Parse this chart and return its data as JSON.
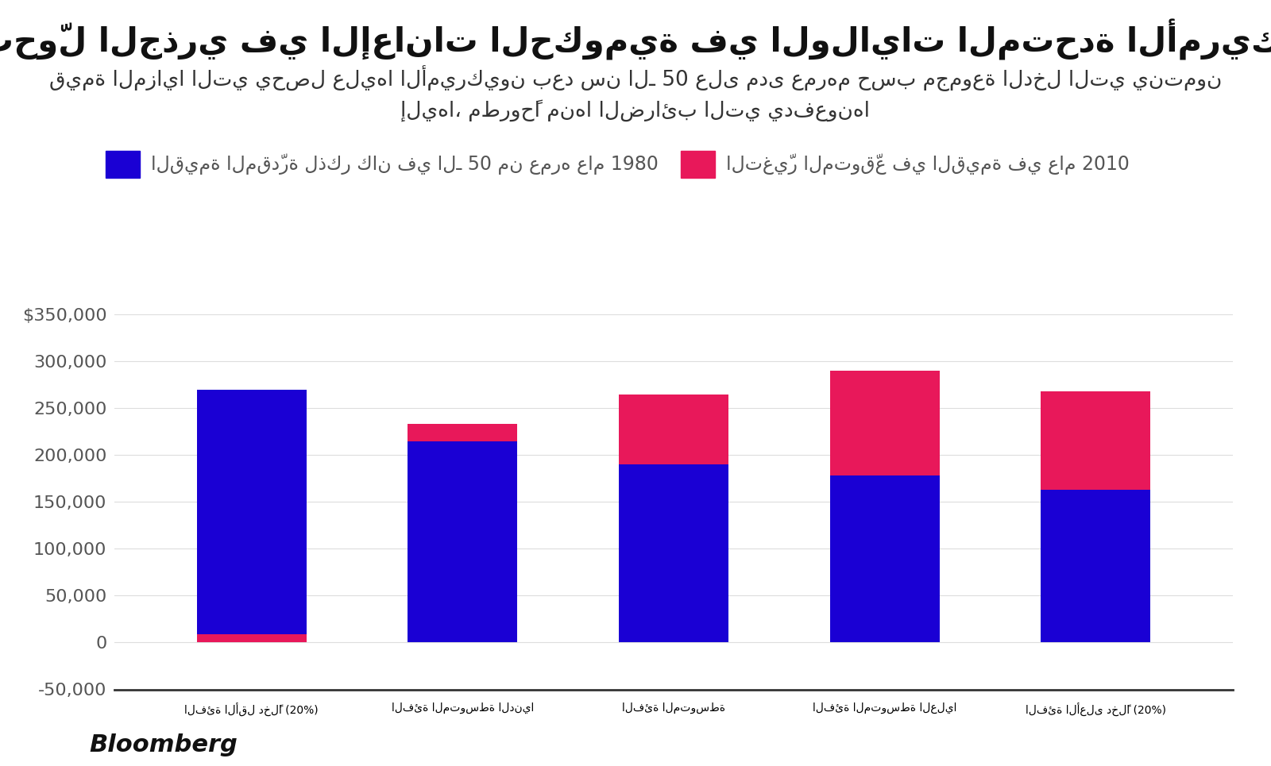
{
  "title": "التحوّل الجذري في الإعانات الحكومية في الولايات المتحدة الأمريكية",
  "subtitle_line1": "قيمة المزايا التي يحصل عليها الأميركيون بعد سن الـ 50 على مدى عمرهم حسب مجموعة الدخل التي ينتمون",
  "subtitle_line2": "إليها، مطروحًا منها الضرائب التي يدفعونها",
  "legend_blue_label": "القيمة المقدّرة لذكر كان في الـ 50 من عمره عام 1980",
  "legend_pink_label": "التغيّر المتوقّع في القيمة في عام 2010",
  "categories": [
    "الفئة الأقل دخلًا (20%)",
    "الفئة المتوسطة الدنيا",
    "الفئة المتوسطة",
    "الفئة المتوسطة العليا",
    "الفئة الأعلى دخلًا (20%)"
  ],
  "blue_values": [
    270000,
    215000,
    190000,
    178000,
    163000
  ],
  "pink_values": [
    9000,
    18000,
    75000,
    112000,
    105000
  ],
  "pink_bottom": [
    0,
    215000,
    190000,
    178000,
    163000
  ],
  "blue_color": "#1a00d4",
  "pink_color": "#e8185a",
  "bg_color": "#FFFFFF",
  "ylim_min": -50000,
  "ylim_max": 375000,
  "yticks": [
    -50000,
    0,
    50000,
    100000,
    150000,
    200000,
    250000,
    300000,
    350000
  ],
  "ytick_labels": [
    "-50,000",
    "0",
    "50,000",
    "100,000",
    "150,000",
    "200,000",
    "250,000",
    "300,000",
    "$350,000"
  ],
  "bloomberg_label": "Bloomberg",
  "title_fontsize": 30,
  "subtitle_fontsize": 19,
  "axis_fontsize": 16,
  "legend_fontsize": 17,
  "bar_width": 0.52
}
